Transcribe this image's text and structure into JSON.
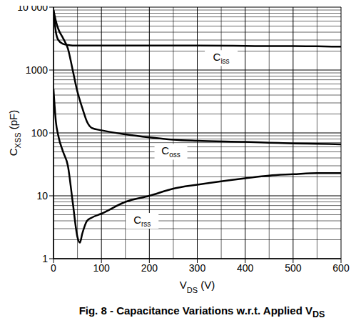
{
  "chart_data": {
    "type": "line",
    "title": "Fig. 8 - Capacitance Variations w.r.t. Applied VDS",
    "x_label": "VDS (V)",
    "y_label": "CXSS (pF)",
    "x": [
      0,
      5,
      10,
      20,
      30,
      40,
      50,
      55,
      60,
      70,
      80,
      100,
      150,
      200,
      250,
      300,
      400,
      450,
      500,
      550,
      600
    ],
    "series": [
      {
        "name": "Ciss",
        "color": "#000000",
        "values": [
          9000,
          4000,
          3000,
          2600,
          2500,
          2450,
          2450,
          2450,
          2450,
          2450,
          2450,
          2450,
          2450,
          2450,
          2450,
          2450,
          2420,
          2400,
          2400,
          2380,
          2350
        ]
      },
      {
        "name": "Coss",
        "color": "#000000",
        "values": [
          9000,
          6000,
          4500,
          3200,
          2200,
          1000,
          450,
          330,
          250,
          150,
          120,
          110,
          95,
          85,
          78,
          75,
          72,
          70,
          68,
          67,
          66
        ]
      },
      {
        "name": "Crss",
        "color": "#000000",
        "values": [
          500,
          150,
          90,
          50,
          30,
          8,
          2.2,
          1.8,
          2.5,
          4,
          4.5,
          5.2,
          8,
          10,
          13,
          15,
          19,
          21,
          22,
          23,
          23
        ]
      }
    ],
    "xlim": [
      0,
      600
    ],
    "xticks": [
      0,
      100,
      200,
      300,
      400,
      500,
      600
    ],
    "ylim": [
      1,
      10000
    ],
    "yticks": [
      1,
      10,
      100,
      1000,
      {
        "value": 10000,
        "label": "10 000"
      }
    ],
    "log": "y",
    "grid": true
  }
}
